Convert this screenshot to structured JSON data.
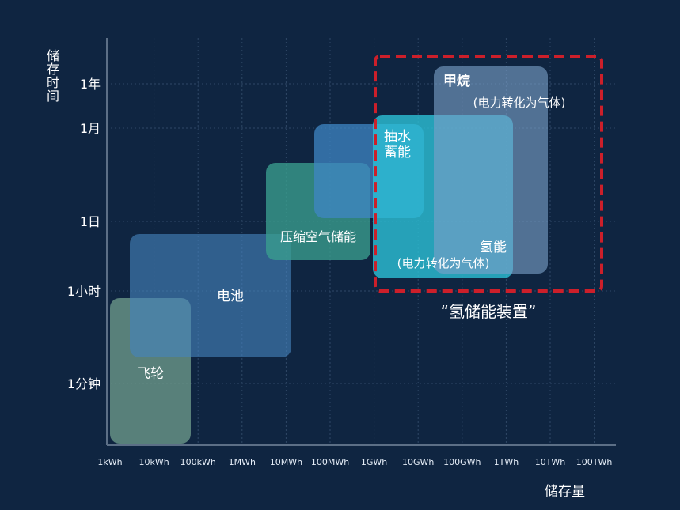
{
  "chart_data": {
    "type": "area",
    "xlabel": "储存量",
    "ylabel": "储存时间",
    "x_ticks": [
      "1kWh",
      "10kWh",
      "100kWh",
      "1MWh",
      "10MWh",
      "100MWh",
      "1GWh",
      "10GWh",
      "100GWh",
      "1TWh",
      "10TWh",
      "100TWh"
    ],
    "y_ticks": [
      "1分钟",
      "1小时",
      "1日",
      "1月",
      "1年"
    ],
    "grid": true,
    "regions": [
      {
        "name": "飞轮",
        "x": [
          "1kWh",
          "100kWh"
        ],
        "y": [
          "<1分钟",
          "1小时"
        ],
        "color": "#6d9a8a"
      },
      {
        "name": "电池",
        "x": [
          "10kWh",
          "10MWh"
        ],
        "y": [
          "1分钟",
          "1日"
        ],
        "color": "#4683bd"
      },
      {
        "name": "压缩空气储能",
        "x": [
          "10MWh",
          "100MWh+"
        ],
        "y": [
          "1日",
          "1月"
        ],
        "color": "#3a9e8e"
      },
      {
        "name": "抽水蓄能",
        "x": [
          "100MWh",
          "10GWh"
        ],
        "y": [
          "1日",
          "1月"
        ],
        "color": "#3f85c4"
      },
      {
        "name": "氢能",
        "sub": "(电力转化为气体)",
        "x": [
          "1GWh",
          "1TWh"
        ],
        "y": [
          "1小时",
          "1月"
        ],
        "color": "#2cc0d6"
      },
      {
        "name": "甲烷",
        "sub": "(电力转化为气体)",
        "x": [
          "100GWh",
          "10TWh"
        ],
        "y": [
          "1小时",
          "1年"
        ],
        "color": "#7a9fc8"
      }
    ],
    "highlight": {
      "label": "“氢储能装置”",
      "x": [
        "1GWh",
        "100TWh"
      ],
      "y": [
        "1小时",
        "1年+"
      ],
      "color": "#cc1f2a"
    }
  }
}
